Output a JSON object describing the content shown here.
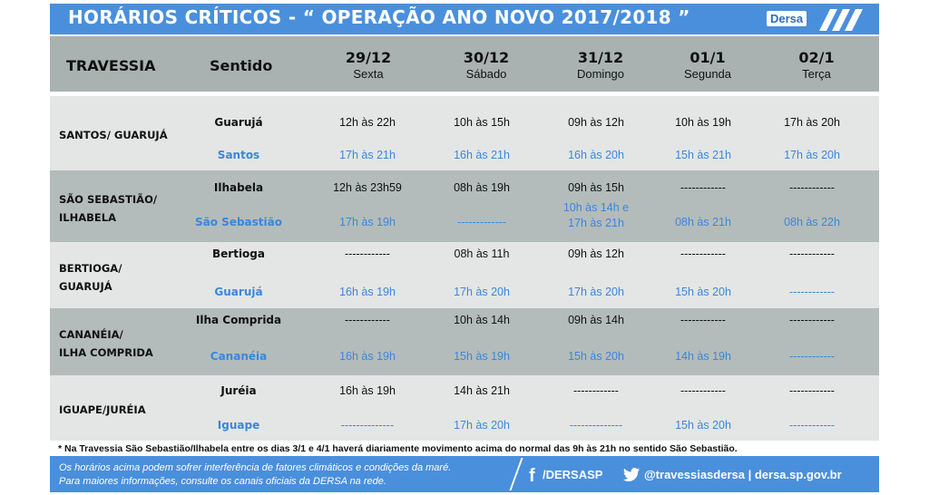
{
  "title": "HORÁRIOS CRÍTICOS - “ OPERAÇÃO ANO NOVO 2017/2018 ”",
  "logo": "Dersa",
  "header": {
    "travessia": "TRAVESSIA",
    "sentido": "Sentido",
    "days": [
      {
        "date": "29/12",
        "weekday": "Sexta"
      },
      {
        "date": "30/12",
        "weekday": "Sábado"
      },
      {
        "date": "31/12",
        "weekday": "Domingo"
      },
      {
        "date": "01/1",
        "weekday": "Segunda"
      },
      {
        "date": "02/1",
        "weekday": "Terça"
      }
    ]
  },
  "rows": [
    {
      "route_lines": [
        "SANTOS/ GUARUJÁ"
      ],
      "dir_a": "Guarujá",
      "dir_b": "Santos",
      "times_a": [
        "12h às 22h",
        "10h às 15h",
        "09h às 12h",
        "10h às 19h",
        "17h às 20h"
      ],
      "times_b": [
        "17h às 21h",
        "16h às 21h",
        "16h às 20h",
        "15h às 21h",
        "17h às 20h"
      ]
    },
    {
      "route_lines": [
        "SÃO SEBASTIÃO/",
        "ILHABELA"
      ],
      "dir_a": "Ilhabela",
      "dir_b": "São Sebastião",
      "times_a": [
        "12h às 23h59",
        "08h às 19h",
        "09h às 15h",
        "------------",
        "------------"
      ],
      "times_b": [
        "17h às 19h",
        "-------------",
        "10h às 14h e\n17h às 21h",
        "08h às 21h",
        "08h às 22h"
      ]
    },
    {
      "route_lines": [
        "BERTIOGA/",
        "GUARUJÁ"
      ],
      "dir_a": "Bertioga",
      "dir_b": "Guarujá",
      "times_a": [
        "------------",
        "08h às 11h",
        "09h às 12h",
        "------------",
        "------------"
      ],
      "times_b": [
        "16h às 19h",
        "17h às 20h",
        "17h às 20h",
        "15h às 20h",
        "------------"
      ]
    },
    {
      "route_lines": [
        "CANANÉIA/",
        "ILHA COMPRIDA"
      ],
      "dir_a": "Ilha Comprida",
      "dir_b": "Cananéia",
      "times_a": [
        "------------",
        "10h às 14h",
        "09h às 14h",
        "------------",
        "------------"
      ],
      "times_b": [
        "16h às 19h",
        "15h às 19h",
        "15h às 20h",
        "14h às 19h",
        "------------"
      ]
    },
    {
      "route_lines": [
        "IGUAPE/JURÉIA"
      ],
      "dir_a": "Juréia",
      "dir_b": "Iguape",
      "times_a": [
        "16h às 19h",
        "14h às 21h",
        "------------",
        "------------",
        "------------"
      ],
      "times_b": [
        "--------------",
        "17h às 20h",
        "--------------",
        "15h às 20h",
        "------------"
      ]
    }
  ],
  "note": "* Na Travessia São Sebastião/Ilhabela entre os dias 3/1 e 4/1 haverá diariamente movimento acima do normal das  9h às 21h no sentido São Sebastião.",
  "footer": {
    "disclaimer_1": "Os horários acima podem sofrer interferência de fatores climáticos e condições da maré.",
    "disclaimer_2": "Para maiores informações, consulte os canais oficiais da DERSA na rede.",
    "facebook": "/DERSASP",
    "twitter": "@travessiasdersa | dersa.sp.gov.br"
  },
  "colors": {
    "brand_blue": "#4a8fdc",
    "secondary_text_blue": "#3b86dc",
    "header_gray": "#a9b2b0",
    "band_light": "#e3e6e4",
    "band_dark": "#b3bcba"
  },
  "icons": {
    "facebook": "facebook-icon",
    "twitter": "twitter-icon",
    "logo_stripes": "dersa-stripes-icon"
  }
}
